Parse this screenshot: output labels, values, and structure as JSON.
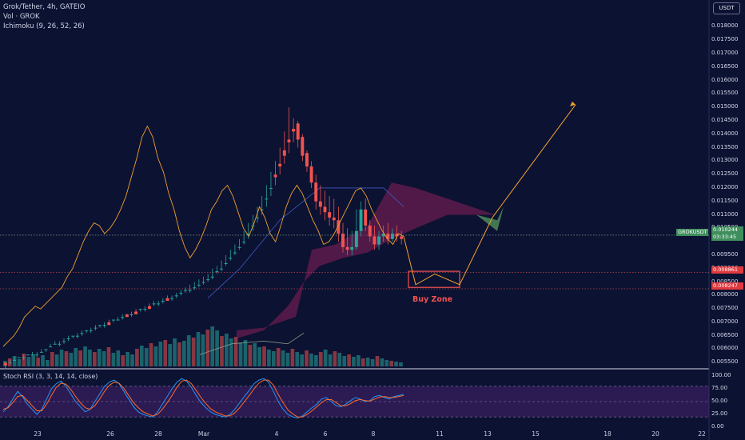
{
  "legend": {
    "title": "Grok/Tether, 4h, GATEIO",
    "volume": "Vol · GROK",
    "ichimoku": "Ichimoku (9, 26, 52, 26)"
  },
  "stoch_label": "Stoch RSI (3, 3, 14, 14, close)",
  "currency_button": "USDT",
  "annotation": {
    "buy_zone": "Buy Zone"
  },
  "badges": {
    "symbol": "GROKUSDT",
    "price": "0.010244",
    "countdown": "03:33:45",
    "level_upper": "0.008861",
    "level_lower": "0.008247"
  },
  "price_ticks": [
    "0.018000",
    "0.017500",
    "0.017000",
    "0.016500",
    "0.016000",
    "0.015500",
    "0.015000",
    "0.014500",
    "0.014000",
    "0.013500",
    "0.013000",
    "0.012500",
    "0.012000",
    "0.011500",
    "0.011000",
    "0.010500",
    "0.009500",
    "0.009000",
    "0.008500",
    "0.008000",
    "0.007500",
    "0.007000",
    "0.006500",
    "0.006000",
    "0.005500"
  ],
  "stoch_ticks": [
    "100.00",
    "75.00",
    "50.00",
    "25.00",
    "0.00"
  ],
  "x_ticks": [
    "23",
    "26",
    "28",
    "Mar",
    "4",
    "6",
    "8",
    "11",
    "13",
    "15",
    "18",
    "20",
    "22"
  ],
  "colors": {
    "background": "#0c1232",
    "bull": "#26a69a",
    "bear": "#ef5350",
    "volume_line": "#f0a030",
    "cloud": "#8b1f5a",
    "buy_zone": "#f05252",
    "stoch_k": "#2196f3",
    "stoch_d": "#ff6b2b",
    "stoch_band": "#6a2c91"
  },
  "chart_data": {
    "type": "candlestick",
    "symbol": "Grok/Tether",
    "timeframe": "4h",
    "exchange": "GATEIO",
    "ylim": [
      0.0053,
      0.0184
    ],
    "stoch_ylim": [
      0,
      100
    ],
    "stoch_bands": [
      20,
      50,
      80
    ],
    "last_price": 0.010244,
    "levels": [
      0.008861,
      0.008247
    ],
    "buy_zone": {
      "low": 0.0083,
      "high": 0.0089
    },
    "projection": [
      0.0102,
      0.0084,
      0.0088,
      0.0084,
      0.0109,
      0.0151
    ],
    "candles": [
      [
        0.0055,
        0.0055,
        0.0054,
        0.0053
      ],
      [
        0.0055,
        0.0056,
        0.0055,
        0.0055
      ],
      [
        0.0056,
        0.0057,
        0.0056,
        0.0056
      ],
      [
        0.0057,
        0.0057,
        0.0057,
        0.0057
      ],
      [
        0.0057,
        0.0058,
        0.0057,
        0.0056
      ],
      [
        0.0058,
        0.0058,
        0.0058,
        0.0058
      ],
      [
        0.0058,
        0.0059,
        0.0058,
        0.0058
      ],
      [
        0.0058,
        0.0059,
        0.0058,
        0.0057
      ],
      [
        0.0059,
        0.006,
        0.0059,
        0.0059
      ],
      [
        0.006,
        0.006,
        0.006,
        0.0059
      ],
      [
        0.0061,
        0.0062,
        0.0061,
        0.0061
      ],
      [
        0.0062,
        0.0063,
        0.0062,
        0.0062
      ],
      [
        0.0062,
        0.0063,
        0.0062,
        0.0061
      ],
      [
        0.0063,
        0.0064,
        0.0063,
        0.0062
      ],
      [
        0.0064,
        0.0065,
        0.0064,
        0.0063
      ],
      [
        0.0065,
        0.0065,
        0.0065,
        0.0064
      ],
      [
        0.0065,
        0.0066,
        0.0065,
        0.0064
      ],
      [
        0.0066,
        0.0067,
        0.0066,
        0.0065
      ],
      [
        0.0067,
        0.0067,
        0.0067,
        0.0066
      ],
      [
        0.0067,
        0.0068,
        0.0067,
        0.0066
      ],
      [
        0.0068,
        0.0069,
        0.0068,
        0.0067
      ],
      [
        0.0069,
        0.0069,
        0.0069,
        0.0068
      ],
      [
        0.0069,
        0.007,
        0.0069,
        0.0068
      ],
      [
        0.007,
        0.0071,
        0.0069,
        0.0069
      ],
      [
        0.0071,
        0.0071,
        0.0071,
        0.007
      ],
      [
        0.0071,
        0.0072,
        0.0071,
        0.0071
      ],
      [
        0.0072,
        0.0073,
        0.0072,
        0.0071
      ],
      [
        0.0073,
        0.0073,
        0.0072,
        0.0072
      ],
      [
        0.0073,
        0.0074,
        0.0073,
        0.0072
      ],
      [
        0.0074,
        0.0075,
        0.0073,
        0.0073
      ],
      [
        0.0075,
        0.0075,
        0.0075,
        0.0074
      ],
      [
        0.0075,
        0.0076,
        0.0075,
        0.0074
      ],
      [
        0.0076,
        0.0077,
        0.0075,
        0.0075
      ],
      [
        0.0077,
        0.0078,
        0.0077,
        0.0076
      ],
      [
        0.0077,
        0.0078,
        0.0077,
        0.0076
      ],
      [
        0.0078,
        0.0079,
        0.0078,
        0.0077
      ],
      [
        0.0079,
        0.008,
        0.0078,
        0.0078
      ],
      [
        0.0079,
        0.008,
        0.0079,
        0.0078
      ],
      [
        0.008,
        0.0081,
        0.008,
        0.0079
      ],
      [
        0.0081,
        0.0082,
        0.0081,
        0.008
      ],
      [
        0.0082,
        0.0083,
        0.0082,
        0.0081
      ],
      [
        0.0082,
        0.0084,
        0.0082,
        0.0081
      ],
      [
        0.0083,
        0.0085,
        0.0083,
        0.0082
      ],
      [
        0.0084,
        0.0086,
        0.0084,
        0.0083
      ],
      [
        0.0085,
        0.0087,
        0.0085,
        0.0084
      ],
      [
        0.0086,
        0.0088,
        0.0086,
        0.0085
      ],
      [
        0.0087,
        0.009,
        0.0087,
        0.0086
      ],
      [
        0.0089,
        0.0091,
        0.0089,
        0.0088
      ],
      [
        0.009,
        0.0093,
        0.009,
        0.0089
      ],
      [
        0.0092,
        0.0095,
        0.0092,
        0.0091
      ],
      [
        0.0094,
        0.0097,
        0.0094,
        0.0093
      ],
      [
        0.0096,
        0.0099,
        0.0096,
        0.0095
      ],
      [
        0.0098,
        0.0101,
        0.0098,
        0.0097
      ],
      [
        0.01,
        0.0104,
        0.01,
        0.0099
      ],
      [
        0.0103,
        0.0107,
        0.0103,
        0.0101
      ],
      [
        0.0106,
        0.011,
        0.0106,
        0.0104
      ],
      [
        0.0109,
        0.0113,
        0.0109,
        0.0107
      ],
      [
        0.0112,
        0.0117,
        0.0112,
        0.011
      ],
      [
        0.0116,
        0.0121,
        0.0116,
        0.0113
      ],
      [
        0.012,
        0.0126,
        0.012,
        0.0117
      ],
      [
        0.0125,
        0.013,
        0.0124,
        0.0121
      ],
      [
        0.0129,
        0.0135,
        0.0128,
        0.0125
      ],
      [
        0.0134,
        0.0141,
        0.0132,
        0.0129
      ],
      [
        0.0138,
        0.015,
        0.0137,
        0.0133
      ],
      [
        0.0142,
        0.0146,
        0.0141,
        0.0137
      ],
      [
        0.0144,
        0.0145,
        0.0138,
        0.0135
      ],
      [
        0.0139,
        0.014,
        0.0132,
        0.013
      ],
      [
        0.0133,
        0.0134,
        0.0128,
        0.0126
      ],
      [
        0.0128,
        0.013,
        0.0122,
        0.012
      ],
      [
        0.0122,
        0.0125,
        0.0115,
        0.0112
      ],
      [
        0.0115,
        0.0121,
        0.0113,
        0.011
      ],
      [
        0.0113,
        0.0119,
        0.0111,
        0.0108
      ],
      [
        0.0111,
        0.0117,
        0.0109,
        0.0106
      ],
      [
        0.0109,
        0.0116,
        0.0108,
        0.0105
      ],
      [
        0.0108,
        0.0113,
        0.0103,
        0.01
      ],
      [
        0.0103,
        0.0107,
        0.0098,
        0.0096
      ],
      [
        0.0098,
        0.0105,
        0.0097,
        0.0095
      ],
      [
        0.0097,
        0.0104,
        0.0098,
        0.0095
      ],
      [
        0.0098,
        0.0112,
        0.0104,
        0.0097
      ],
      [
        0.0104,
        0.0115,
        0.0112,
        0.0102
      ],
      [
        0.0112,
        0.0116,
        0.0106,
        0.0104
      ],
      [
        0.0106,
        0.0108,
        0.0102,
        0.01
      ],
      [
        0.0102,
        0.0106,
        0.0099,
        0.0097
      ],
      [
        0.0099,
        0.0104,
        0.0102,
        0.0097
      ],
      [
        0.0102,
        0.0106,
        0.0103,
        0.01
      ],
      [
        0.0103,
        0.0107,
        0.0101,
        0.0099
      ],
      [
        0.0101,
        0.0105,
        0.0103,
        0.01
      ],
      [
        0.0103,
        0.0106,
        0.0102,
        0.01
      ],
      [
        0.0102,
        0.0104,
        0.0101,
        0.0099
      ]
    ],
    "volume_line": [
      0.0061,
      0.0063,
      0.0065,
      0.0068,
      0.0072,
      0.0074,
      0.0076,
      0.0075,
      0.0077,
      0.0079,
      0.0081,
      0.0083,
      0.0087,
      0.009,
      0.0095,
      0.01,
      0.0104,
      0.0107,
      0.0106,
      0.0103,
      0.0105,
      0.0108,
      0.0112,
      0.0117,
      0.0124,
      0.0131,
      0.0139,
      0.0143,
      0.0139,
      0.0131,
      0.0126,
      0.0118,
      0.0112,
      0.0104,
      0.0098,
      0.0094,
      0.0097,
      0.0101,
      0.0106,
      0.0112,
      0.0115,
      0.0119,
      0.0121,
      0.0117,
      0.0111,
      0.0105,
      0.0102,
      0.0107,
      0.0113,
      0.0109,
      0.0103,
      0.01,
      0.0106,
      0.0113,
      0.0118,
      0.0121,
      0.0118,
      0.0113,
      0.0108,
      0.0104,
      0.0099,
      0.01,
      0.0103,
      0.0107,
      0.0111,
      0.0115,
      0.0119,
      0.012,
      0.0117,
      0.0112,
      0.0108,
      0.0104,
      0.0101,
      0.0099,
      0.0103,
      0.0102
    ],
    "volume_bars": [
      0.14,
      0.2,
      0.26,
      0.18,
      0.32,
      0.24,
      0.3,
      0.22,
      0.28,
      0.16,
      0.36,
      0.3,
      0.42,
      0.38,
      0.34,
      0.46,
      0.4,
      0.5,
      0.42,
      0.36,
      0.44,
      0.38,
      0.48,
      0.34,
      0.4,
      0.28,
      0.36,
      0.3,
      0.44,
      0.52,
      0.46,
      0.58,
      0.5,
      0.62,
      0.66,
      0.56,
      0.7,
      0.6,
      0.64,
      0.78,
      0.72,
      0.86,
      0.8,
      0.92,
      1.0,
      0.9,
      0.76,
      0.82,
      0.7,
      0.74,
      0.6,
      0.66,
      0.54,
      0.58,
      0.48,
      0.5,
      0.42,
      0.38,
      0.46,
      0.4,
      0.34,
      0.44,
      0.36,
      0.3,
      0.4,
      0.32,
      0.28,
      0.36,
      0.42,
      0.3,
      0.38,
      0.34,
      0.26,
      0.3,
      0.24,
      0.28,
      0.2,
      0.22,
      0.18,
      0.26,
      0.2,
      0.16,
      0.14,
      0.12,
      0.1
    ],
    "stoch_k": [
      30,
      40,
      55,
      70,
      60,
      45,
      35,
      25,
      35,
      55,
      75,
      85,
      90,
      80,
      65,
      50,
      40,
      30,
      35,
      50,
      65,
      80,
      88,
      92,
      85,
      70,
      55,
      40,
      30,
      25,
      22,
      20,
      30,
      45,
      60,
      75,
      88,
      95,
      90,
      78,
      62,
      48,
      38,
      30,
      25,
      22,
      20,
      25,
      35,
      48,
      60,
      72,
      85,
      92,
      95,
      88,
      70,
      50,
      35,
      25,
      20,
      18,
      22,
      30,
      38,
      45,
      55,
      58,
      50,
      42,
      40,
      45,
      52,
      58,
      55,
      50,
      52,
      60,
      62,
      58,
      55,
      60,
      62,
      64
    ],
    "stoch_d": [
      35,
      38,
      48,
      60,
      62,
      52,
      42,
      32,
      32,
      45,
      62,
      78,
      86,
      84,
      74,
      60,
      48,
      38,
      35,
      42,
      55,
      70,
      82,
      88,
      86,
      76,
      62,
      48,
      38,
      30,
      26,
      22,
      25,
      35,
      48,
      62,
      78,
      90,
      92,
      85,
      72,
      58,
      46,
      36,
      30,
      26,
      22,
      22,
      28,
      38,
      50,
      62,
      75,
      86,
      92,
      92,
      82,
      64,
      48,
      34,
      26,
      20,
      20,
      25,
      32,
      40,
      48,
      54,
      54,
      48,
      42,
      42,
      46,
      52,
      54,
      52,
      51,
      55,
      59,
      60,
      58,
      58,
      60,
      62
    ]
  }
}
